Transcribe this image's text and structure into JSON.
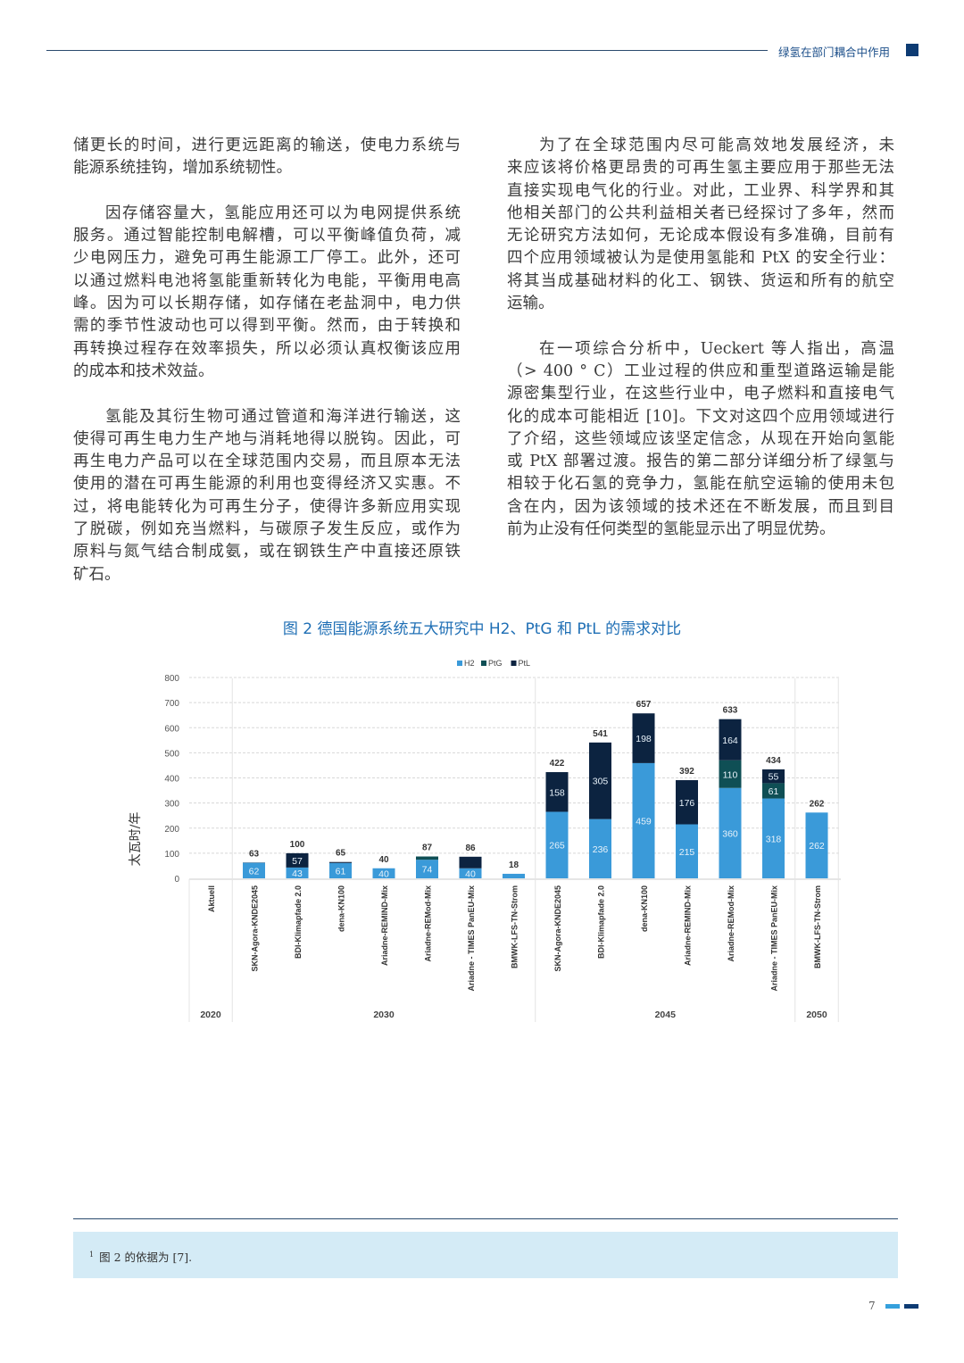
{
  "header": {
    "title": "绿氢在部门耦合中作用",
    "accent": "#0d3b73"
  },
  "left_column": [
    {
      "indent": false,
      "lines": [
        "储更长的时间，进行更远距离的输送，使电力系统与",
        "能源系统挂钩，增加系统韧性。"
      ]
    },
    {
      "indent": true,
      "lines": [
        "因存储容量大，氢能应用还可以为电网提供系统",
        "服务。通过智能控制电解槽，可以平衡峰值负荷，减",
        "少电网压力，避免可再生能源工厂停工。此外，还可",
        "以通过燃料电池将氢能重新转化为电能，平衡用电高",
        "峰。因为可以长期存储，如存储在老盐洞中，电力供",
        "需的季节性波动也可以得到平衡。然而，由于转换和",
        "再转换过程存在效率损失，所以必须认真权衡该应用",
        "的成本和技术效益。"
      ]
    },
    {
      "indent": true,
      "lines": [
        "氢能及其衍生物可通过管道和海洋进行输送，这",
        "使得可再生电力生产地与消耗地得以脱钩。因此，可",
        "再生电力产品可以在全球范围内交易，而且原本无法",
        "使用的潜在可再生能源的利用也变得经济又实惠。不",
        "过，将电能转化为可再生分子，使得许多新应用实现",
        "了脱碳，例如充当燃料，与碳原子发生反应，或作为",
        "原料与氮气结合制成氨，或在钢铁生产中直接还原铁",
        "矿石。"
      ]
    }
  ],
  "right_column": [
    {
      "indent": true,
      "lines": [
        "为了在全球范围内尽可能高效地发展经济，未",
        "来应该将价格更昂贵的可再生氢主要应用于那些无法",
        "直接实现电气化的行业。对此，工业界、科学界和其",
        "他相关部门的公共利益相关者已经探讨了多年，然而",
        "无论研究方法如何，无论成本假设有多准确，目前有",
        "四个应用领域被认为是使用氢能和 PtX 的安全行业：",
        "将其当成基础材料的化工、钢铁、货运和所有的航空",
        "运输。"
      ]
    },
    {
      "indent": true,
      "lines": [
        "在一项综合分析中，Ueckert 等人指出，高温",
        "（> 400 ° C）工业过程的供应和重型道路运输是能",
        "源密集型行业，在这些行业中，电子燃料和直接电气",
        "化的成本可能相近 [10]。下文对这四个应用领域进行",
        "了介绍，这些领域应该坚定信念，从现在开始向氢能",
        "或 PtX 部署过渡。报告的第二部分详细分析了绿氢与",
        "相较于化石氢的竞争力，氢能在航空运输的使用未包",
        "含在内，因为该领域的技术还在不断发展，而且到目",
        "前为止没有任何类型的氢能显示出了明显优势。"
      ]
    }
  ],
  "figure": {
    "caption": "图 2 德国能源系统五大研究中 H2、PtG 和 PtL 的需求对比"
  },
  "chart_data": {
    "type": "bar",
    "stacked": true,
    "ylabel": "太瓦时/年",
    "ylim": [
      0,
      800
    ],
    "yticks": [
      0,
      100,
      200,
      300,
      400,
      500,
      600,
      700,
      800
    ],
    "grid": true,
    "legend_position": "top-right",
    "categories": [
      "Aktuell",
      "SKN-Agora-KNDE2045",
      "BDI-Klimapfade 2.0",
      "dena-KN100",
      "Ariadne-REMIND-Mix",
      "Ariadne-REMod-Mix",
      "Ariadne - TIMES PanEU-Mix",
      "BMWK-LFS-TN-Strom",
      "SKN-Agora-KNDE2045",
      "BDI-Klimapfade 2.0",
      "dena-KN100",
      "Ariadne-REMIND-Mix",
      "Ariadne-REMod-Mix",
      "Ariadne - TIMES PanEU-Mix",
      "BMWK-LFS-TN-Strom"
    ],
    "groups": [
      {
        "label": "2020",
        "count": 1
      },
      {
        "label": "2030",
        "count": 7
      },
      {
        "label": "2045",
        "count": 6
      },
      {
        "label": "2050",
        "count": 1
      }
    ],
    "series": [
      {
        "name": "H2",
        "color": "#3a9ad9",
        "values": [
          0,
          62,
          43,
          61,
          40,
          74,
          40,
          18,
          265,
          236,
          459,
          215,
          360,
          318,
          262
        ],
        "labels": [
          null,
          "62",
          "43",
          "61",
          "40",
          "74",
          "40",
          null,
          "265",
          "236",
          "459",
          "215",
          "360",
          "318",
          "262"
        ]
      },
      {
        "name": "PtG",
        "color": "#0f4f55",
        "values": [
          0,
          0,
          0,
          0,
          0,
          13,
          0,
          0,
          0,
          0,
          0,
          0,
          110,
          61,
          0
        ],
        "labels": [
          null,
          null,
          null,
          null,
          null,
          null,
          null,
          null,
          null,
          null,
          null,
          null,
          "110",
          "61",
          null
        ]
      },
      {
        "name": "PtL",
        "color": "#0c2340",
        "values": [
          0,
          1,
          57,
          4,
          0,
          0,
          46,
          0,
          158,
          305,
          198,
          176,
          164,
          55,
          0
        ],
        "labels": [
          null,
          null,
          "57",
          null,
          null,
          null,
          null,
          null,
          "158",
          "305",
          "198",
          "176",
          "164",
          "55",
          null
        ]
      }
    ],
    "totals": [
      null,
      "63",
      "100",
      "65",
      "40",
      "87",
      "86",
      "18",
      "422",
      "541",
      "657",
      "392",
      "633",
      "434",
      "262"
    ]
  },
  "footnote": {
    "marker": "1",
    "text": "图 2 的依据为 [7]."
  },
  "page_number": "7"
}
